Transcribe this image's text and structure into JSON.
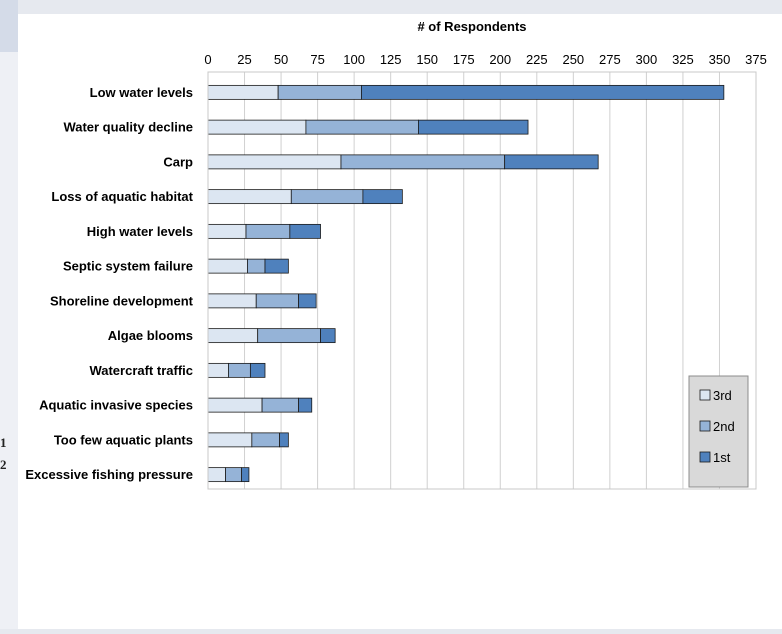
{
  "background_fragments": [
    "1",
    "2"
  ],
  "chart_data": {
    "type": "bar",
    "orientation": "horizontal",
    "stacked": true,
    "title": "# of Respondents",
    "xlabel": "",
    "ylabel": "",
    "xlim": [
      0,
      375
    ],
    "x_ticks": [
      "0",
      "25",
      "50",
      "75",
      "100",
      "125",
      "150",
      "175",
      "200",
      "225",
      "250",
      "275",
      "300",
      "325",
      "350",
      "375"
    ],
    "grid": true,
    "legend_position": "right-bottom",
    "categories": [
      "Low water levels",
      "Water quality decline",
      "Carp",
      "Loss of aquatic habitat",
      "High water levels",
      "Septic system failure",
      "Shoreline development",
      "Algae blooms",
      "Watercraft traffic",
      "Aquatic invasive species",
      "Too few aquatic plants",
      "Excessive fishing pressure"
    ],
    "series": [
      {
        "name": "3rd",
        "color": "#dce6f2",
        "values": [
          48,
          67,
          91,
          57,
          26,
          27,
          33,
          34,
          14,
          37,
          30,
          12
        ]
      },
      {
        "name": "2nd",
        "color": "#95b3d7",
        "values": [
          57,
          77,
          112,
          49,
          30,
          12,
          29,
          43,
          15,
          25,
          19,
          11
        ]
      },
      {
        "name": "1st",
        "color": "#4f81bd",
        "values": [
          248,
          75,
          64,
          27,
          21,
          16,
          12,
          10,
          10,
          9,
          6,
          5
        ]
      }
    ]
  }
}
